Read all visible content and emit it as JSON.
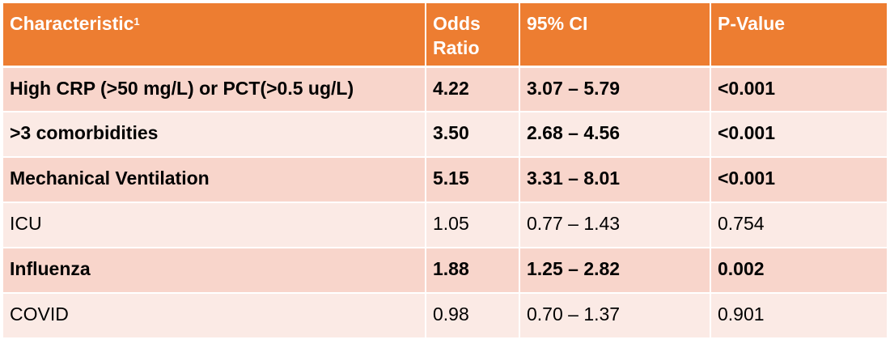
{
  "header": {
    "characteristic": "Characteristic",
    "characteristic_sup": "1",
    "odds_ratio": "Odds Ratio",
    "ci": "95% CI",
    "p_value": "P-Value"
  },
  "rows": [
    {
      "characteristic": "High CRP (>50 mg/L) or PCT(>0.5 ug/L)",
      "odds_ratio": "4.22",
      "ci": "3.07 – 5.79",
      "p_value": "<0.001",
      "bold": true
    },
    {
      "characteristic": ">3 comorbidities",
      "odds_ratio": "3.50",
      "ci": "2.68 – 4.56",
      "p_value": "<0.001",
      "bold": true
    },
    {
      "characteristic": "Mechanical Ventilation",
      "odds_ratio": "5.15",
      "ci": "3.31 – 8.01",
      "p_value": "<0.001",
      "bold": true
    },
    {
      "characteristic": "ICU",
      "odds_ratio": "1.05",
      "ci": "0.77 – 1.43",
      "p_value": "0.754",
      "bold": false
    },
    {
      "characteristic": "Influenza",
      "odds_ratio": "1.88",
      "ci": "1.25 – 2.82",
      "p_value": "0.002",
      "bold": true
    },
    {
      "characteristic": "COVID",
      "odds_ratio": "0.98",
      "ci": "0.70 – 1.37",
      "p_value": "0.901",
      "bold": false
    }
  ],
  "colors": {
    "header_bg": "#ed7d31",
    "row_odd_bg": "#f8d5cb",
    "row_even_bg": "#fbeae5"
  }
}
